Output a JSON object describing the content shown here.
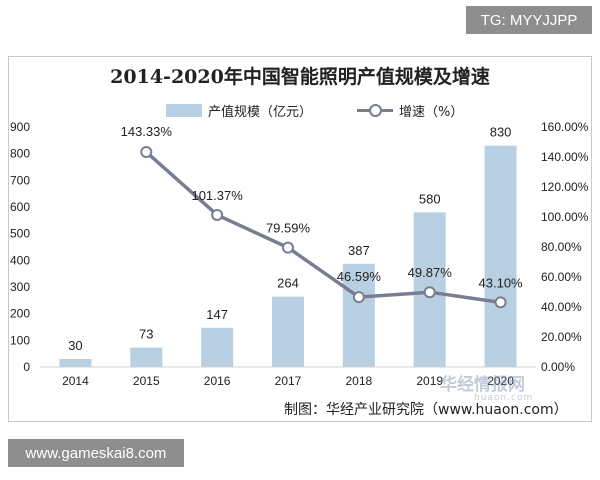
{
  "badges": {
    "top": "TG: MYYJJPP",
    "bottom": "www.gameskai8.com"
  },
  "source": "制图：华经产业研究院（www.huaon.com）",
  "watermark": {
    "main": "华经情报网",
    "sub": "huaon.com"
  },
  "colors": {
    "bar": "#b8d0e2",
    "line": "#7a7d92"
  },
  "chart_data": {
    "type": "bar",
    "title": "2014-2020年中国智能照明产值规模及增速",
    "categories": [
      "2014",
      "2015",
      "2016",
      "2017",
      "2018",
      "2019",
      "2020"
    ],
    "series": [
      {
        "name": "产值规模（亿元）",
        "type": "bar",
        "axis": "left",
        "values": [
          30,
          73,
          147,
          264,
          387,
          580,
          830
        ],
        "labels": [
          "30",
          "73",
          "147",
          "264",
          "387",
          "580",
          "830"
        ]
      },
      {
        "name": "增速（%）",
        "type": "line",
        "axis": "right",
        "values": [
          null,
          143.33,
          101.37,
          79.59,
          46.59,
          49.87,
          43.1
        ],
        "labels": [
          "",
          "143.33%",
          "101.37%",
          "79.59%",
          "46.59%",
          "49.87%",
          "43.10%"
        ]
      }
    ],
    "ylim_left": [
      0,
      900
    ],
    "yticks_left": [
      "0",
      "100",
      "200",
      "300",
      "400",
      "500",
      "600",
      "700",
      "800",
      "900"
    ],
    "ylim_right": [
      0,
      160
    ],
    "yticks_right": [
      "0.00%",
      "20.00%",
      "40.00%",
      "60.00%",
      "80.00%",
      "100.00%",
      "120.00%",
      "140.00%",
      "160.00%"
    ],
    "legend_position": "top",
    "grid": false
  }
}
